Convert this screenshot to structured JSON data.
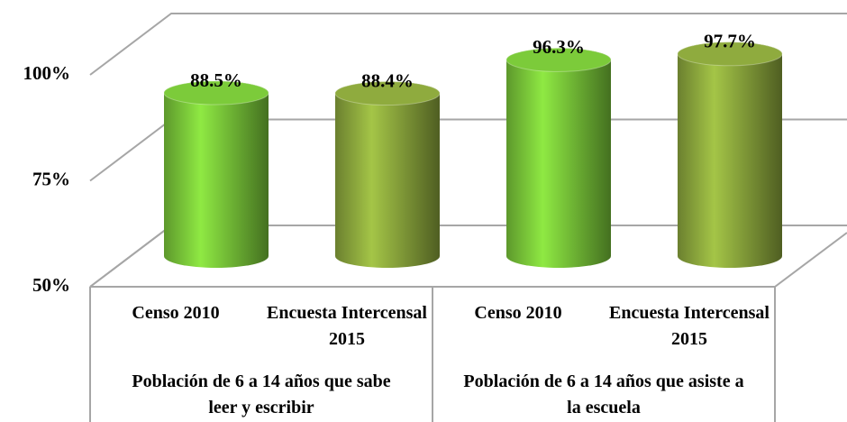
{
  "chart_data": {
    "type": "cylinder",
    "categories": [
      "Censo 2010",
      "Encuesta Intercensal 2015",
      "Censo 2010",
      "Encuesta Intercensal 2015"
    ],
    "groups": [
      "Población de 6 a 14 años que sabe leer y escribir",
      "Población de 6 a 14 años que asiste a la escuela"
    ],
    "values": [
      88.5,
      88.4,
      96.3,
      97.7
    ],
    "value_labels": [
      "88.5%",
      "88.4%",
      "96.3%",
      "97.7%"
    ],
    "colors": [
      "#7ccb3a",
      "#8fab3e",
      "#7ccb3a",
      "#8fab3e"
    ],
    "ylim": [
      50,
      100
    ],
    "yticks": [
      {
        "value": 50,
        "label": "50%"
      },
      {
        "value": 75,
        "label": "75%"
      },
      {
        "value": 100,
        "label": "100%"
      }
    ],
    "grid": true
  }
}
